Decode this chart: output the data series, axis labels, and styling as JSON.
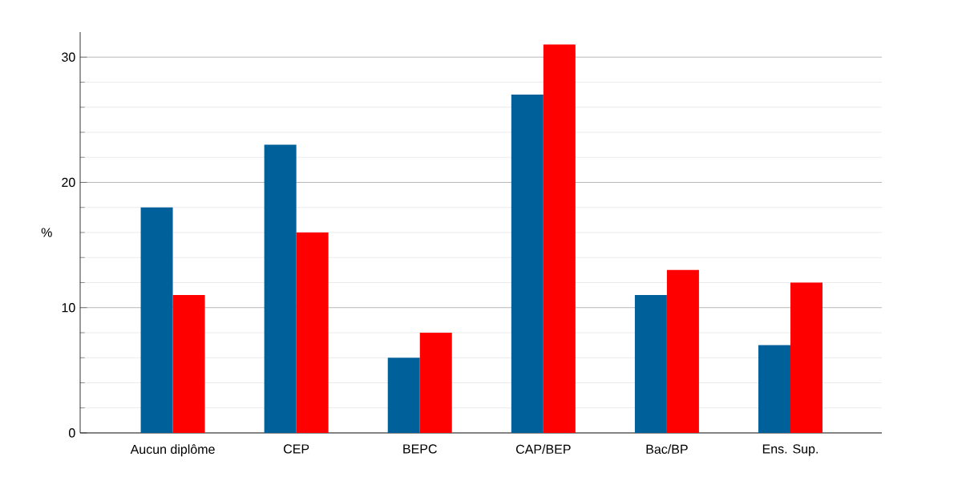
{
  "chart_data": {
    "type": "bar",
    "ylabel": "%",
    "categories": [
      "Aucun diplôme",
      "CEP",
      "BEPC",
      "CAP/BEP",
      "Bac/BP",
      "Ens. Sup."
    ],
    "series": [
      {
        "color": "#00609a",
        "values": [
          18,
          23,
          6,
          27,
          11,
          7
        ]
      },
      {
        "color": "#ff0000",
        "values": [
          11,
          16,
          8,
          31,
          13,
          12
        ]
      }
    ],
    "ylim": [
      0,
      32
    ],
    "yticks": [
      0,
      10,
      20,
      30
    ],
    "grid": "y"
  }
}
